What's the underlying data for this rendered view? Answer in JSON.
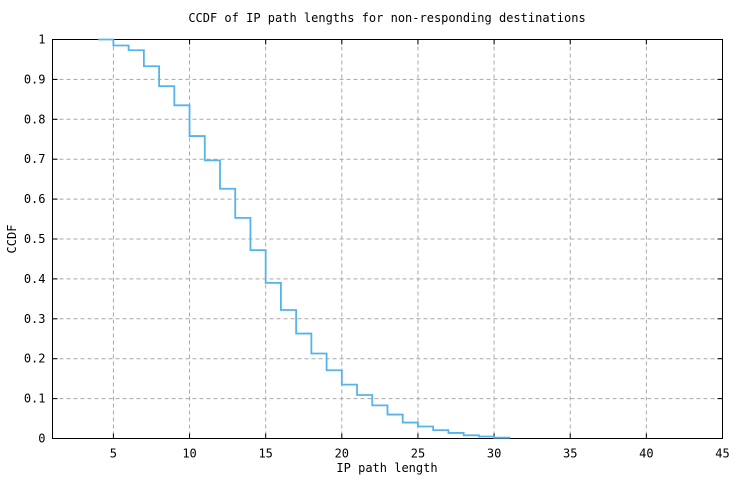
{
  "chart_data": {
    "type": "line",
    "subtype": "ccdf_step_staircase",
    "title": "CCDF of IP path lengths for non-responding destinations",
    "xlabel": "IP path length",
    "ylabel": "CCDF",
    "xlim": [
      1,
      45
    ],
    "ylim": [
      0,
      1
    ],
    "grid": true,
    "grid_style": "dashed",
    "legend_position": "none",
    "x_ticks": [
      5,
      10,
      15,
      20,
      25,
      30,
      35,
      40,
      45
    ],
    "x_tick_labels": [
      "5",
      "10",
      "15",
      "20",
      "25",
      "30",
      "35",
      "40",
      "45"
    ],
    "y_ticks": [
      0,
      0.1,
      0.2,
      0.3,
      0.4,
      0.5,
      0.6,
      0.7,
      0.8,
      0.9,
      1
    ],
    "y_tick_labels": [
      "0",
      "0.1",
      "0.2",
      "0.3",
      "0.4",
      "0.5",
      "0.6",
      "0.7",
      "0.8",
      "0.9",
      "1"
    ],
    "colors": {
      "line": "#56b4e9",
      "grid": "#a8a8a8",
      "axis": "#000000",
      "text": "#000000",
      "background": "#ffffff"
    },
    "series": [
      {
        "x": [
          4,
          5,
          6,
          7,
          8,
          9,
          10,
          11,
          12,
          13,
          14,
          15,
          16,
          17,
          18,
          19,
          20,
          21,
          22,
          23,
          24,
          25,
          26,
          27,
          28,
          29,
          30,
          31
        ],
        "ccdf": [
          1.0,
          0.985,
          0.973,
          0.933,
          0.883,
          0.835,
          0.758,
          0.697,
          0.626,
          0.553,
          0.472,
          0.39,
          0.322,
          0.263,
          0.213,
          0.171,
          0.135,
          0.109,
          0.083,
          0.06,
          0.04,
          0.03,
          0.021,
          0.014,
          0.008,
          0.005,
          0.002,
          0.0
        ]
      }
    ]
  }
}
